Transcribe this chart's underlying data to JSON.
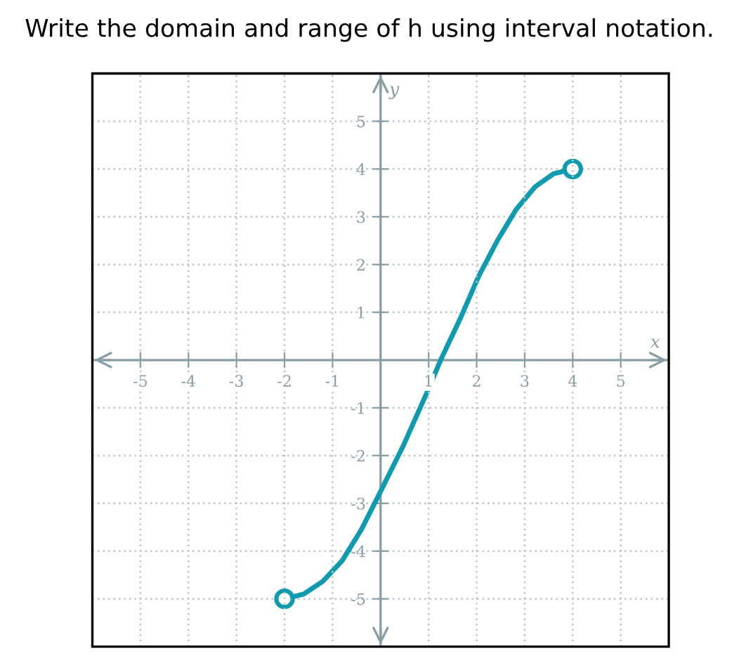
{
  "chart_data": {
    "type": "line",
    "title": "Write the domain and range of h using interval notation.",
    "xlabel": "x",
    "ylabel": "y",
    "xlim": [
      -6,
      6
    ],
    "ylim": [
      -6,
      6
    ],
    "xticks": [
      -5,
      -4,
      -3,
      -2,
      -1,
      1,
      2,
      3,
      4,
      5
    ],
    "yticks": [
      -5,
      -4,
      -3,
      -2,
      -1,
      1,
      2,
      3,
      4,
      5
    ],
    "grid": true,
    "series": [
      {
        "color": "#0e9aaf",
        "marker": "none",
        "x": [
          -2,
          -1.6,
          -1.2,
          -0.8,
          -0.4,
          0,
          0.47,
          1.0,
          1.25,
          1.65,
          2.04,
          2.43,
          2.82,
          3.22,
          3.6,
          4
        ],
        "values": [
          -5,
          -4.9,
          -4.63,
          -4.2,
          -3.55,
          -2.75,
          -1.8,
          -0.6,
          0,
          0.85,
          1.75,
          2.5,
          3.15,
          3.63,
          3.9,
          4
        ]
      },
      {
        "type": "scatter",
        "color": "#0e9aaf",
        "marker": "circle",
        "x": [
          -2,
          4
        ],
        "values": [
          -5,
          4
        ]
      }
    ]
  }
}
